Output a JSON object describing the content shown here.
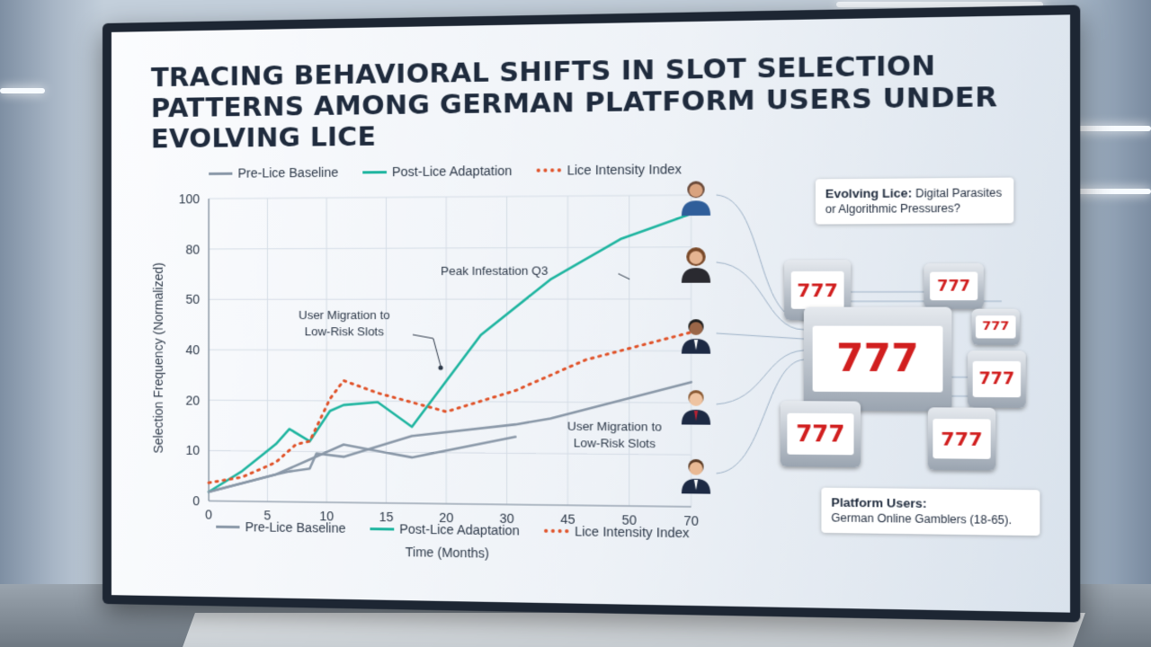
{
  "title": "Tracing Behavioral Shifts in Slot Selection Patterns Among German Platform Users Under Evolving Lice",
  "legend_top": [
    {
      "label": "Pre-Lice Baseline",
      "color": "#8a98a8",
      "style": "solid"
    },
    {
      "label": "Post-Lice Adaptation",
      "color": "#1fb5a0",
      "style": "solid"
    },
    {
      "label": "Lice Intensity Index",
      "color": "#e0532a",
      "style": "dotted"
    }
  ],
  "legend_bottom": [
    {
      "label": "Pre-Lice Baseline",
      "color": "#8a98a8",
      "style": "solid"
    },
    {
      "label": "Post-Lice Adaptation",
      "color": "#1fb5a0",
      "style": "solid"
    },
    {
      "label": "Lice Intensity Index",
      "color": "#e0532a",
      "style": "dotted"
    }
  ],
  "annotations": {
    "peak": "Peak Infestation Q3",
    "migration_left": "User Migration to Low-Risk Slots",
    "migration_right": "User Migration to Low-Risk Slots"
  },
  "boxes": {
    "top_heading": "Evolving Lice:",
    "top_text": "Digital Parasites or Algorithmic Pressures?",
    "bottom_heading": "Platform Users:",
    "bottom_text": "German Online Gamblers (18-65)."
  },
  "slot_symbol": "777",
  "icons": [
    "user-avatar-icon",
    "slot-machine-icon"
  ],
  "chart_data": {
    "type": "line",
    "xlabel": "Time (Months)",
    "ylabel": "Selection Frequency (Normalized)",
    "x_ticks": [
      "0",
      "5",
      "10",
      "15",
      "20",
      "30",
      "45",
      "50",
      "70"
    ],
    "y_ticks": [
      "0",
      "10",
      "20",
      "40",
      "50",
      "80",
      "100"
    ],
    "ylim": [
      0,
      100
    ],
    "grid": true,
    "legend": "top and bottom",
    "series": [
      {
        "name": "Pre-Lice Baseline",
        "color": "#8a98a8",
        "style": "solid",
        "x": [
          0,
          5,
          10,
          12,
          15,
          16,
          20,
          30,
          45,
          50,
          70
        ],
        "y": [
          3,
          6,
          9,
          10,
          11,
          16,
          15,
          22,
          26,
          28,
          40
        ]
      },
      {
        "name": "Post-Lice Adaptation",
        "color": "#1fb5a0",
        "style": "solid",
        "x": [
          0,
          5,
          10,
          12,
          15,
          18,
          20,
          25,
          30,
          40,
          50,
          60,
          70
        ],
        "y": [
          3,
          10,
          19,
          24,
          20,
          30,
          32,
          33,
          25,
          55,
          73,
          86,
          94
        ]
      },
      {
        "name": "Lice Intensity Index",
        "color": "#e0532a",
        "style": "dotted",
        "x": [
          0,
          5,
          10,
          13,
          15,
          18,
          20,
          25,
          30,
          35,
          45,
          55,
          70
        ],
        "y": [
          6,
          8,
          13,
          19,
          20,
          34,
          40,
          36,
          33,
          30,
          37,
          47,
          56
        ]
      },
      {
        "name": "",
        "color": "#8a98a8",
        "style": "solid",
        "x": [
          0,
          5,
          10,
          15,
          20,
          25,
          30,
          45
        ],
        "y": [
          3,
          6,
          9,
          14,
          19,
          17,
          15,
          22
        ]
      }
    ]
  }
}
